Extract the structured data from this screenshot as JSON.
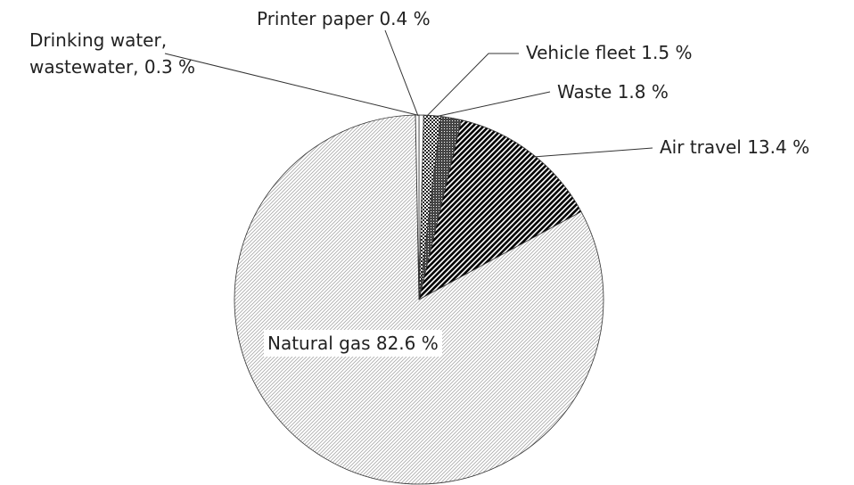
{
  "chart_data": {
    "type": "pie",
    "categories": [
      "Printer paper",
      "Vehicle fleet",
      "Waste",
      "Air travel",
      "Natural gas",
      "Drinking water, wastewater,"
    ],
    "values": [
      0.4,
      1.5,
      1.8,
      13.4,
      82.6,
      0.3
    ],
    "value_labels": [
      "0.4 %",
      "1.5 %",
      "1.8 %",
      "13.4 %",
      "82.6 %",
      "0.3 %"
    ],
    "colors": [
      "#ffffff",
      "#222222",
      "#444444",
      "#000000",
      "#aaaaaa",
      "#ffffff"
    ]
  }
}
